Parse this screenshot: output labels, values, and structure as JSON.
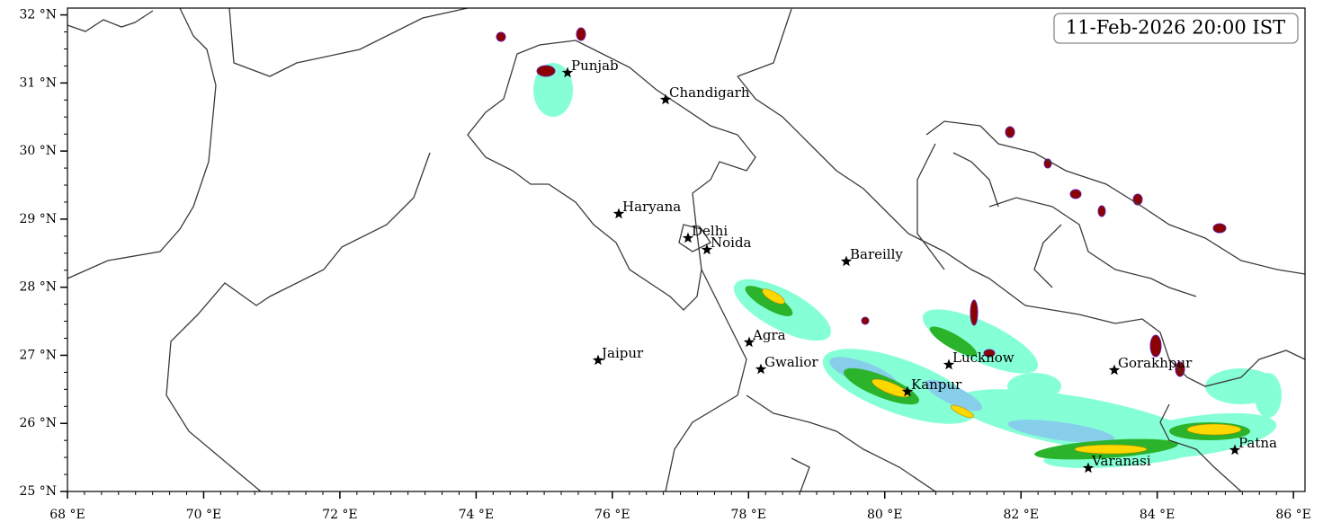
{
  "map": {
    "lon_range": [
      68,
      86.17
    ],
    "lat_range": [
      25,
      32.1
    ],
    "x_ticks": [
      {
        "value": 68,
        "label": "68 °E"
      },
      {
        "value": 70,
        "label": "70 °E"
      },
      {
        "value": 72,
        "label": "72 °E"
      },
      {
        "value": 74,
        "label": "74 °E"
      },
      {
        "value": 76,
        "label": "76 °E"
      },
      {
        "value": 78,
        "label": "78 °E"
      },
      {
        "value": 80,
        "label": "80 °E"
      },
      {
        "value": 82,
        "label": "82 °E"
      },
      {
        "value": 84,
        "label": "84 °E"
      },
      {
        "value": 86,
        "label": "86 °E"
      }
    ],
    "y_ticks": [
      {
        "value": 25,
        "label": "25 °N"
      },
      {
        "value": 26,
        "label": "26 °N"
      },
      {
        "value": 27,
        "label": "27 °N"
      },
      {
        "value": 28,
        "label": "28 °N"
      },
      {
        "value": 29,
        "label": "29 °N"
      },
      {
        "value": 30,
        "label": "30 °N"
      },
      {
        "value": 31,
        "label": "31 °N"
      },
      {
        "value": 32,
        "label": "32 °N"
      }
    ],
    "timestamp": "11-Feb-2026 20:00 IST",
    "cities": [
      "Punjab",
      "Chandigarh",
      "Haryana",
      "Delhi",
      "Noida",
      "Bareilly",
      "Jaipur",
      "Agra",
      "Gwalior",
      "Lucknow",
      "Kanpur",
      "Gorakhpur",
      "Varanasi",
      "Patna"
    ]
  }
}
